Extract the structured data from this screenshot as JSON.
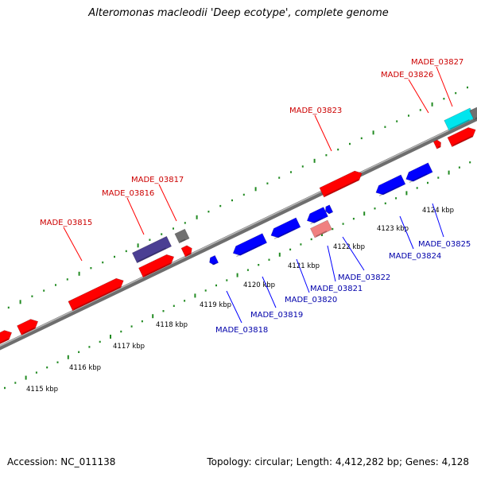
{
  "title": "Alteromonas macleodii 'Deep ecotype', complete genome",
  "footer": {
    "accession": "Accession: NC_011138",
    "summary": "Topology: circular; Length: 4,412,282 bp; Genes: 4,128"
  },
  "colors": {
    "forward_gene": "#ff0000",
    "reverse_gene": "#0000ff",
    "forward_label": "#cc0000",
    "reverse_label": "#0000aa",
    "tick": "#228b22",
    "backbone": "#808080"
  },
  "ticks": [
    {
      "label": "4115 kbp"
    },
    {
      "label": "4116 kbp"
    },
    {
      "label": "4117 kbp"
    },
    {
      "label": "4118 kbp"
    },
    {
      "label": "4119 kbp"
    },
    {
      "label": "4120 kbp"
    },
    {
      "label": "4121 kbp"
    },
    {
      "label": "4122 kbp"
    },
    {
      "label": "4123 kbp"
    },
    {
      "label": "4124 kbp"
    }
  ],
  "forward_labels": [
    "MADE_03815",
    "MADE_03816",
    "MADE_03817",
    "MADE_03823",
    "MADE_03826",
    "MADE_03827"
  ],
  "reverse_labels": [
    "MADE_03818",
    "MADE_03819",
    "MADE_03820",
    "MADE_03821",
    "MADE_03822",
    "MADE_03824",
    "MADE_03825"
  ]
}
